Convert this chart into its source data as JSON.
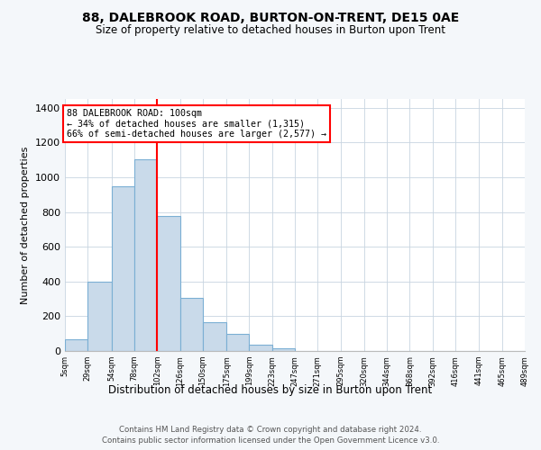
{
  "title": "88, DALEBROOK ROAD, BURTON-ON-TRENT, DE15 0AE",
  "subtitle": "Size of property relative to detached houses in Burton upon Trent",
  "xlabel": "Distribution of detached houses by size in Burton upon Trent",
  "ylabel": "Number of detached properties",
  "footnote1": "Contains HM Land Registry data © Crown copyright and database right 2024.",
  "footnote2": "Contains public sector information licensed under the Open Government Licence v3.0.",
  "bar_edges": [
    5,
    29,
    54,
    78,
    102,
    126,
    150,
    175,
    199,
    223,
    247,
    271,
    295,
    320,
    344,
    368,
    392,
    416,
    441,
    465,
    489
  ],
  "bar_heights": [
    65,
    400,
    950,
    1105,
    775,
    305,
    165,
    100,
    38,
    18,
    0,
    0,
    0,
    0,
    0,
    0,
    0,
    0,
    0,
    0
  ],
  "bar_color": "#c9daea",
  "bar_edgecolor": "#7bafd4",
  "vline_x": 102,
  "vline_color": "red",
  "annotation_text": "88 DALEBROOK ROAD: 100sqm\n← 34% of detached houses are smaller (1,315)\n66% of semi-detached houses are larger (2,577) →",
  "ylim": [
    0,
    1450
  ],
  "yticks": [
    0,
    200,
    400,
    600,
    800,
    1000,
    1200,
    1400
  ],
  "bg_color": "#f4f7fa",
  "plot_bg_color": "#ffffff",
  "grid_color": "#c8d4e0"
}
